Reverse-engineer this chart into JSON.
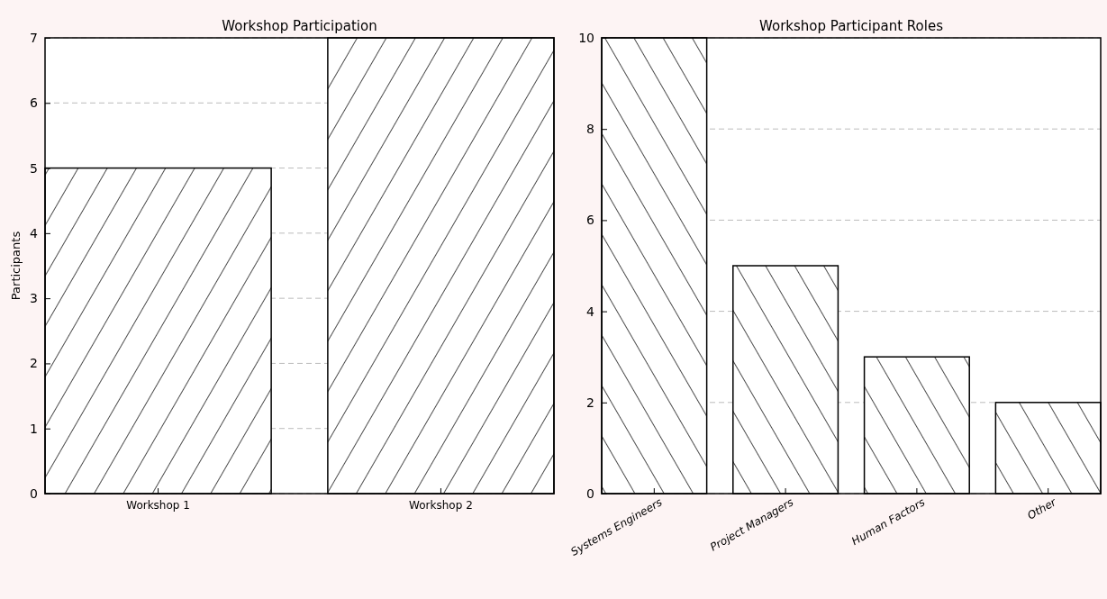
{
  "chart_data": [
    {
      "type": "bar",
      "title": "Workshop Participation",
      "ylabel": "Participants",
      "categories": [
        "Workshop 1",
        "Workshop 2"
      ],
      "values": [
        5,
        7
      ],
      "color": "#000000",
      "ylim": [
        0,
        7
      ],
      "yticks": [
        0,
        1,
        2,
        3,
        4,
        5,
        6,
        7
      ],
      "grid": "y"
    },
    {
      "type": "bar",
      "title": "Workshop Participant Roles",
      "categories": [
        "Systems Engineers",
        "Project Managers",
        "Human Factors",
        "Other"
      ],
      "values": [
        10,
        5,
        3,
        2
      ],
      "color": "#000000",
      "ylim": [
        0,
        10
      ],
      "yticks": [
        0,
        2,
        4,
        6,
        8,
        10
      ],
      "grid": "y"
    }
  ]
}
